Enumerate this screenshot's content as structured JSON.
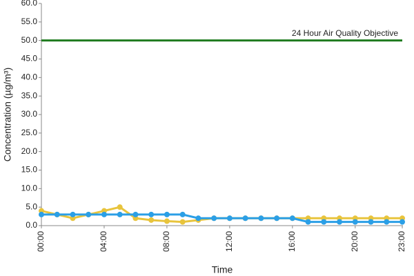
{
  "chart_data": {
    "type": "line",
    "y_label": "Concentration (µg/m³)",
    "x_label": "Time",
    "categories": [
      "00:00",
      null,
      null,
      null,
      "04:00",
      null,
      null,
      null,
      "08:00",
      null,
      null,
      null,
      "12:00",
      null,
      null,
      null,
      "16:00",
      null,
      null,
      null,
      "20:00",
      null,
      null,
      "23:00"
    ],
    "series": [
      {
        "color": "#e8c43c",
        "values": [
          4,
          3,
          2,
          3,
          4,
          5,
          2,
          1.5,
          1.2,
          1,
          1.5,
          2,
          2,
          2,
          2,
          2,
          2,
          2,
          2,
          2,
          2,
          2,
          2,
          2
        ]
      },
      {
        "color": "#2b9fe6",
        "values": [
          3,
          3,
          3,
          3,
          3,
          3,
          3,
          3,
          3,
          3,
          2,
          2,
          2,
          2,
          2,
          2,
          2,
          1,
          1,
          1,
          1,
          1,
          1,
          1
        ]
      }
    ],
    "objective": {
      "value": 50,
      "label": "24 Hour Air Quality Objective",
      "color": "#1e7b1e"
    },
    "ylim": [
      0,
      60
    ],
    "yticks": [
      {
        "value": 0,
        "label": "0.0"
      },
      {
        "value": 5,
        "label": "5.0"
      },
      {
        "value": 10,
        "label": "10.0"
      },
      {
        "value": 15,
        "label": "15.0"
      },
      {
        "value": 20,
        "label": "20.0"
      },
      {
        "value": 25,
        "label": "25.0"
      },
      {
        "value": 30,
        "label": "30.0"
      },
      {
        "value": 35,
        "label": "35.0"
      },
      {
        "value": 40,
        "label": "40.0"
      },
      {
        "value": 45,
        "label": "45.0"
      },
      {
        "value": 50,
        "label": "50.0"
      },
      {
        "value": 55,
        "label": "55.0"
      },
      {
        "value": 60,
        "label": "60.0"
      }
    ]
  }
}
